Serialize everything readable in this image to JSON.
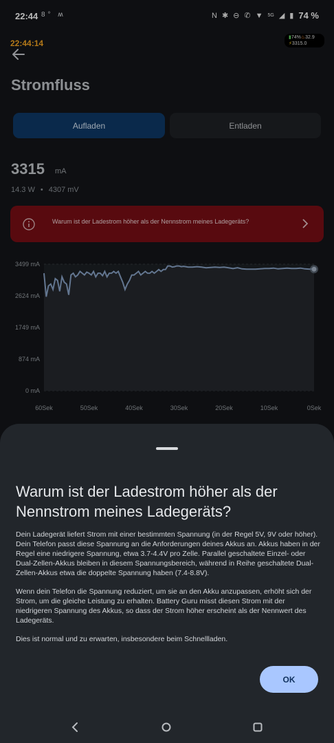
{
  "status_bar": {
    "time": "22:44",
    "left_icons": "8° ʍ",
    "network": "5G",
    "battery_percent": "74 %"
  },
  "overlay": {
    "clock": "22:44:14",
    "widget_line1_pct": "74%",
    "widget_line1_temp": "32.9",
    "widget_line2_value": "3315.0"
  },
  "header": {
    "title": "Stromfluss"
  },
  "tabs": {
    "charge": "Aufladen",
    "discharge": "Entladen",
    "active": "charge"
  },
  "current": {
    "value": "3315",
    "unit": "mA",
    "power": "14.3 W",
    "voltage": "4307 mV"
  },
  "banner": {
    "text": "Warum ist der Ladestrom höher als der Nennstrom meines Ladegeräts?"
  },
  "chart_data": {
    "type": "line",
    "y_tick_labels": [
      "3499 mA",
      "2624 mA",
      "1749 mA",
      "874 mA",
      "0 mA"
    ],
    "y_ticks": [
      3499,
      2624,
      1749,
      874,
      0
    ],
    "x_tick_labels": [
      "60Sek",
      "50Sek",
      "40Sek",
      "30Sek",
      "20Sek",
      "10Sek",
      "0Sek"
    ],
    "xlim": [
      60,
      0
    ],
    "ylim": [
      0,
      3499
    ],
    "x": [
      60,
      59.5,
      59,
      58.5,
      58,
      57.5,
      57,
      56.5,
      56,
      55.5,
      55,
      54.5,
      54,
      53.5,
      53,
      52.5,
      52,
      51.5,
      51,
      50.5,
      50,
      49.5,
      49,
      48.5,
      48,
      47.5,
      47,
      46.5,
      46,
      45.5,
      45,
      44.5,
      44,
      43.5,
      43,
      42.5,
      42,
      41.5,
      41,
      40.5,
      40,
      39.5,
      39,
      38.5,
      38,
      37.5,
      37,
      36.5,
      36,
      35.5,
      35,
      34.5,
      34,
      33.5,
      33,
      32.5,
      32,
      31.5,
      31,
      30.5,
      30,
      29.5,
      29,
      28.5,
      28,
      27,
      26,
      25,
      24,
      23,
      22,
      21,
      20,
      19,
      18,
      17,
      16,
      15,
      14,
      13,
      12,
      11,
      10,
      9,
      8,
      7,
      6,
      5,
      4,
      3,
      2,
      1,
      0.5,
      0
    ],
    "y": [
      3250,
      2600,
      2900,
      2950,
      2800,
      3100,
      3050,
      2750,
      3150,
      3000,
      2950,
      2650,
      3200,
      3250,
      3150,
      3200,
      3300,
      3250,
      3200,
      3280,
      3250,
      3200,
      3300,
      3150,
      3250,
      3250,
      3180,
      3300,
      3150,
      3250,
      3250,
      3300,
      3250,
      3300,
      3150,
      3000,
      2800,
      2950,
      3050,
      3200,
      3200,
      3250,
      3300,
      3200,
      3250,
      3300,
      3250,
      3250,
      3300,
      3250,
      3300,
      3350,
      3300,
      3350,
      3350,
      3450,
      3450,
      3420,
      3430,
      3450,
      3450,
      3430,
      3440,
      3430,
      3420,
      3420,
      3430,
      3420,
      3400,
      3410,
      3420,
      3410,
      3420,
      3400,
      3380,
      3400,
      3370,
      3360,
      3360,
      3360,
      3370,
      3380,
      3380,
      3390,
      3370,
      3380,
      3390,
      3380,
      3380,
      3390,
      3370,
      3360,
      3370,
      3360
    ],
    "series": [
      {
        "color": "#8aa4c8"
      }
    ],
    "grid": true
  },
  "sheet": {
    "title": "Warum ist der Ladestrom höher als der Nennstrom meines Ladegeräts?",
    "paragraphs": [
      "Dein Ladegerät liefert Strom mit einer bestimmten Spannung (in der Regel 5V, 9V oder höher). Dein Telefon passt diese Spannung an die Anforderungen deines Akkus an. Akkus haben in der Regel eine niedrigere Spannung, etwa 3.7-4.4V pro Zelle. Parallel geschaltete Einzel- oder Dual-Zellen-Akkus bleiben in diesem Spannungsbereich, während in Reihe geschaltete Dual-Zellen-Akkus etwa die doppelte Spannung haben (7.4-8.8V).",
      "Wenn dein Telefon die Spannung reduziert, um sie an den Akku anzupassen, erhöht sich der Strom, um die gleiche Leistung zu erhalten. Battery Guru misst diesen Strom mit der niedrigeren Spannung des Akkus, so dass der Strom höher erscheint als der Nennwert des Ladegeräts.",
      "Dies ist normal und zu erwarten, insbesondere beim Schnellladen."
    ],
    "ok_label": "OK"
  },
  "colors": {
    "accent": "#a9c7ff",
    "tab_active": "#0f3a68",
    "banner": "#7b0f16",
    "overlay_clock": "#f5a623"
  }
}
